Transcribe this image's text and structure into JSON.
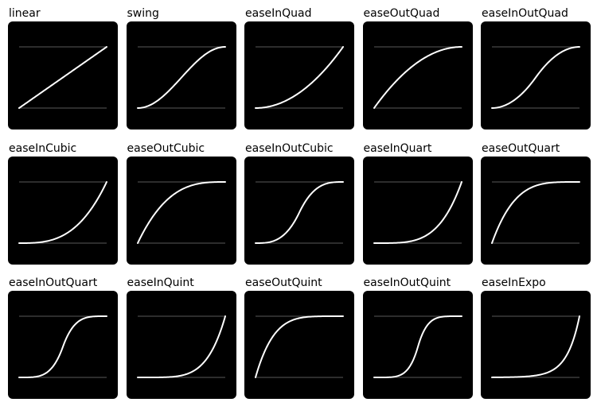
{
  "colors": {
    "page_background": "#ffffff",
    "panel_background": "#000000",
    "guide_line": "#5a5a5a",
    "curve": "#ffffff",
    "label_text": "#000000"
  },
  "charts": [
    {
      "label": "linear",
      "easing": "linear"
    },
    {
      "label": "swing",
      "easing": "swing"
    },
    {
      "label": "easeInQuad",
      "easing": "easeInQuad"
    },
    {
      "label": "easeOutQuad",
      "easing": "easeOutQuad"
    },
    {
      "label": "easeInOutQuad",
      "easing": "easeInOutQuad"
    },
    {
      "label": "easeInCubic",
      "easing": "easeInCubic"
    },
    {
      "label": "easeOutCubic",
      "easing": "easeOutCubic"
    },
    {
      "label": "easeInOutCubic",
      "easing": "easeInOutCubic"
    },
    {
      "label": "easeInQuart",
      "easing": "easeInQuart"
    },
    {
      "label": "easeOutQuart",
      "easing": "easeOutQuart"
    },
    {
      "label": "easeInOutQuart",
      "easing": "easeInOutQuart"
    },
    {
      "label": "easeInQuint",
      "easing": "easeInQuint"
    },
    {
      "label": "easeOutQuint",
      "easing": "easeOutQuint"
    },
    {
      "label": "easeInOutQuint",
      "easing": "easeInOutQuint"
    },
    {
      "label": "easeInExpo",
      "easing": "easeInExpo"
    }
  ]
}
